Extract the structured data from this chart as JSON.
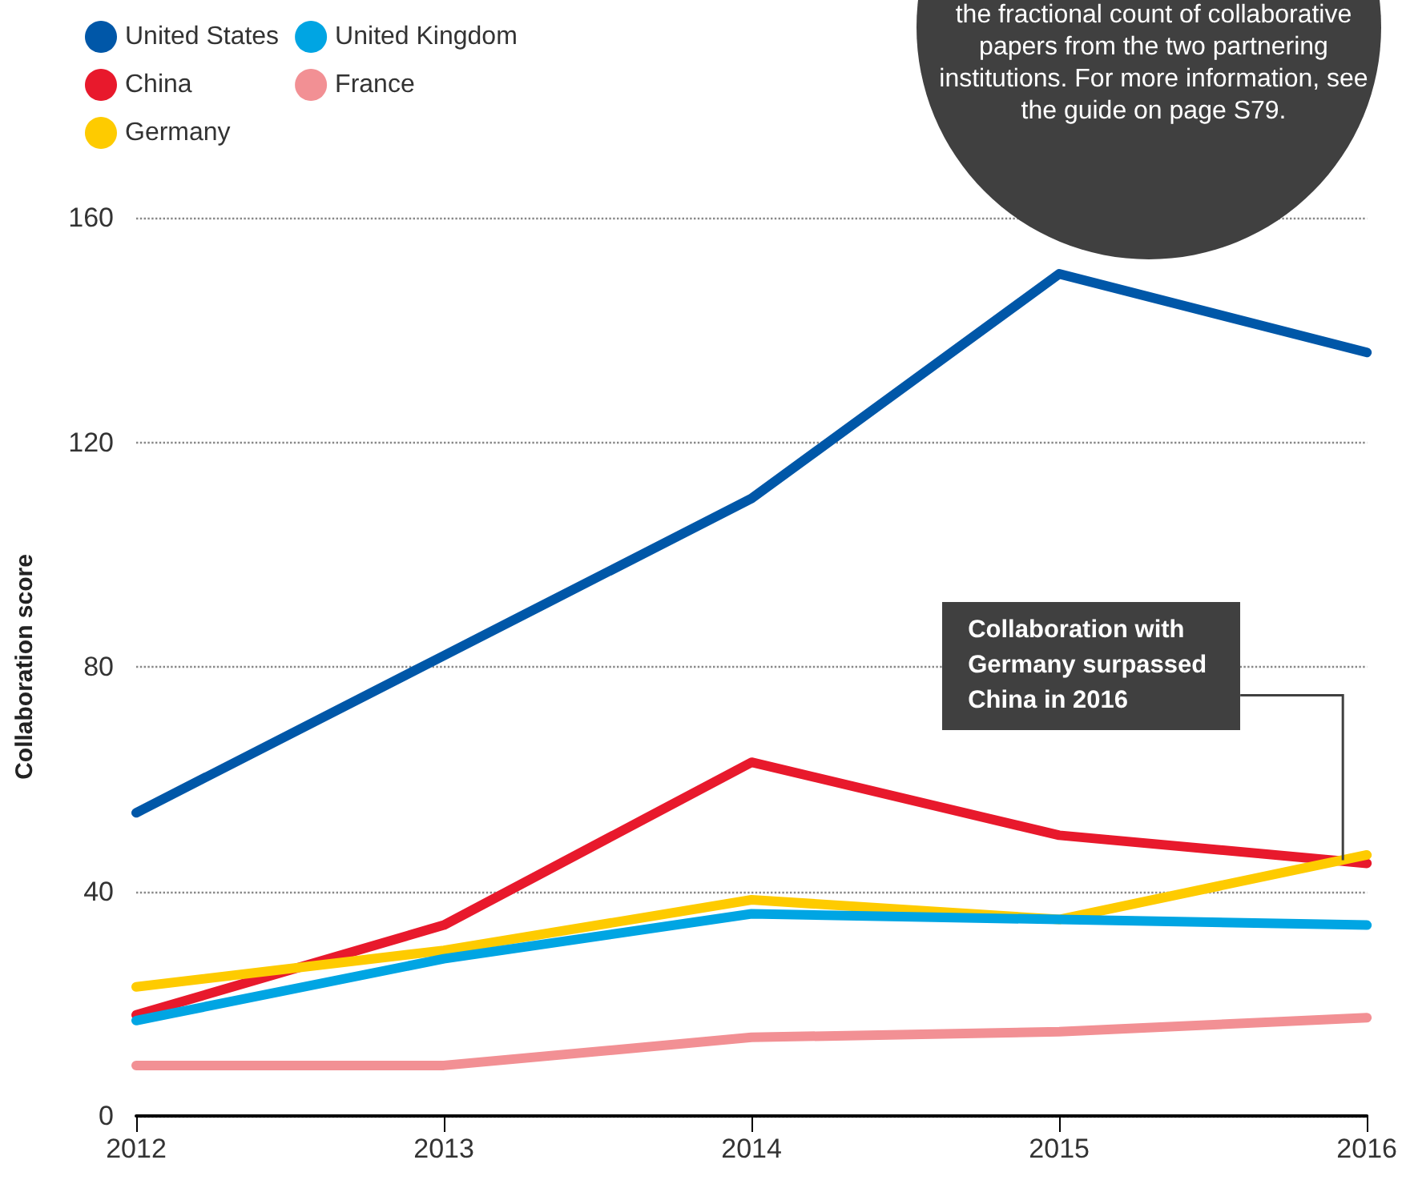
{
  "chart_data": {
    "type": "line",
    "ylabel": "Collaboration score",
    "categories": [
      "2012",
      "2013",
      "2014",
      "2015",
      "2016"
    ],
    "series": [
      {
        "name": "United States",
        "color": "#0057a8",
        "values": [
          54,
          82,
          110,
          150,
          136
        ]
      },
      {
        "name": "China",
        "color": "#e8192c",
        "values": [
          18,
          34,
          63,
          50,
          45
        ]
      },
      {
        "name": "Germany",
        "color": "#fecb00",
        "values": [
          23,
          29.5,
          38.5,
          35,
          46.5
        ]
      },
      {
        "name": "United Kingdom",
        "color": "#00a5e3",
        "values": [
          17,
          28,
          36,
          35,
          34
        ]
      },
      {
        "name": "France",
        "color": "#f29094",
        "values": [
          9,
          9,
          14,
          15,
          17.5
        ]
      }
    ],
    "ylim": [
      0,
      160
    ],
    "yticks": [
      0,
      40,
      80,
      120,
      160
    ],
    "grid": "y",
    "legend": "top left",
    "marker": "none",
    "line_style": "solid",
    "annotations": [
      "the fractional count of collaborative papers from the two partnering institutions. For more information, see the guide on page S79.",
      "Collaboration with Germany surpassed China in 2016"
    ]
  }
}
